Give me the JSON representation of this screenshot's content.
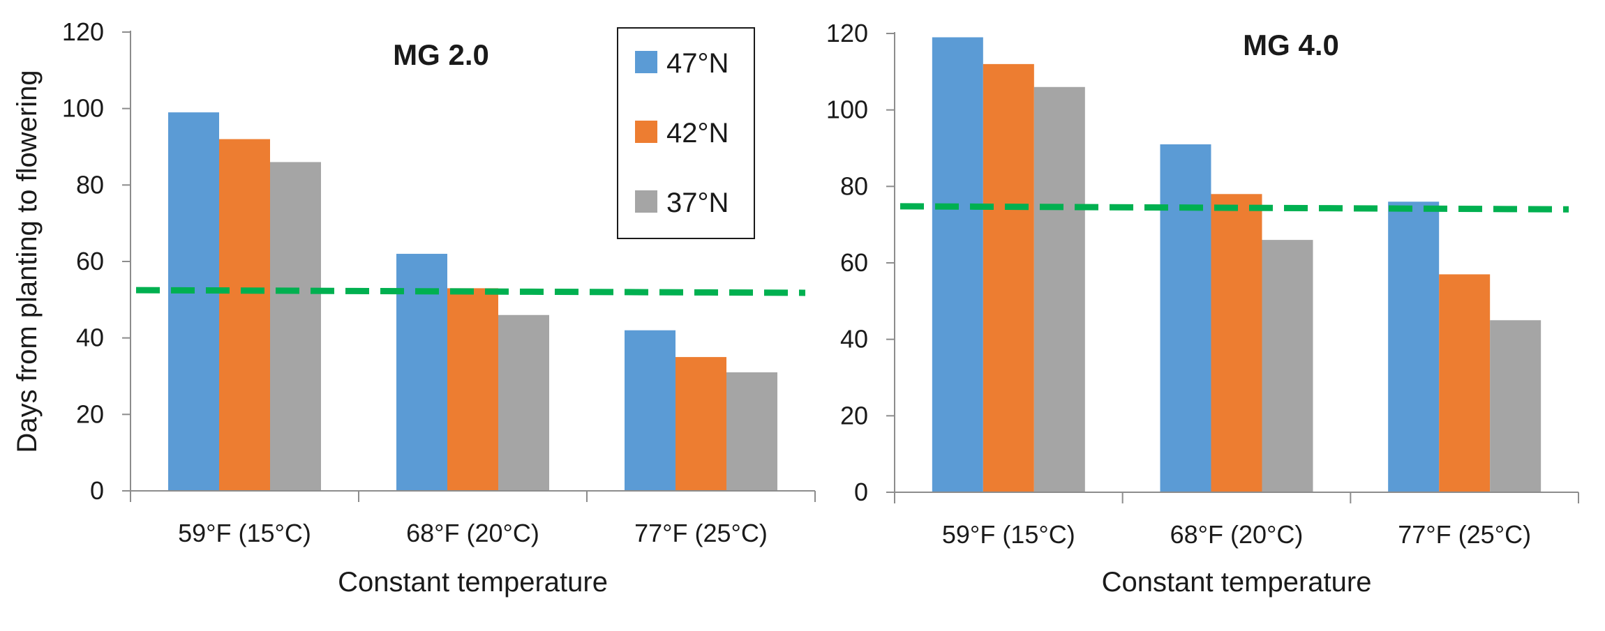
{
  "chart_data": [
    {
      "type": "bar",
      "title": "MG 2.0",
      "xlabel": "Constant temperature",
      "ylabel": "Days from planting to flowering",
      "ylim": [
        0,
        120
      ],
      "yticks": [
        0,
        20,
        40,
        60,
        80,
        100,
        120
      ],
      "categories": [
        "59°F (15°C)",
        "68°F (20°C)",
        "77°F (25°C)"
      ],
      "series": [
        {
          "name": "47°N",
          "color": "#5b9bd5",
          "values": [
            99,
            62,
            42
          ]
        },
        {
          "name": "42°N",
          "color": "#ed7d31",
          "values": [
            92,
            53,
            35
          ]
        },
        {
          "name": "37°N",
          "color": "#a5a5a5",
          "values": [
            86,
            46,
            31
          ]
        }
      ],
      "reference_line": {
        "style": "dashed",
        "color": "#00b050",
        "start": 52.5,
        "end": 51.8
      },
      "legend": "top-right",
      "grid": false
    },
    {
      "type": "bar",
      "title": "MG 4.0",
      "xlabel": "Constant temperature",
      "ylabel": "",
      "ylim": [
        0,
        120
      ],
      "yticks": [
        0,
        20,
        40,
        60,
        80,
        100,
        120
      ],
      "categories": [
        "59°F (15°C)",
        "68°F (20°C)",
        "77°F (25°C)"
      ],
      "series": [
        {
          "name": "47°N",
          "color": "#5b9bd5",
          "values": [
            119,
            91,
            76
          ]
        },
        {
          "name": "42°N",
          "color": "#ed7d31",
          "values": [
            112,
            78,
            57
          ]
        },
        {
          "name": "37°N",
          "color": "#a5a5a5",
          "values": [
            106,
            66,
            45
          ]
        }
      ],
      "reference_line": {
        "style": "dashed",
        "color": "#00b050",
        "start": 74.8,
        "end": 74.0
      },
      "grid": false
    }
  ]
}
